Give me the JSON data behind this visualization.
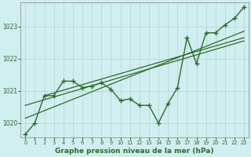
{
  "xlabel": "Graphe pression niveau de la mer (hPa)",
  "background_color": "#d0eef0",
  "grid_color": "#b0d4d4",
  "line_color": "#2d6a2d",
  "xlim": [
    -0.5,
    23.5
  ],
  "ylim": [
    1019.55,
    1023.75
  ],
  "yticks": [
    1020,
    1021,
    1022,
    1023
  ],
  "xticks": [
    0,
    1,
    2,
    3,
    4,
    5,
    6,
    7,
    8,
    9,
    10,
    11,
    12,
    13,
    14,
    15,
    16,
    17,
    18,
    19,
    20,
    21,
    22,
    23
  ],
  "main_x": [
    0,
    1,
    2,
    3,
    4,
    5,
    6,
    7,
    8,
    9,
    10,
    11,
    12,
    13,
    14,
    15,
    16,
    17,
    18,
    19,
    20,
    21,
    22,
    23
  ],
  "main_y": [
    1019.65,
    1020.0,
    1020.85,
    1020.85,
    1021.3,
    1021.3,
    1021.1,
    1021.15,
    1021.25,
    1021.05,
    1020.7,
    1020.75,
    1020.55,
    1020.55,
    1020.0,
    1020.6,
    1021.1,
    1022.65,
    1021.85,
    1022.8,
    1022.8,
    1023.05,
    1023.25,
    1023.6
  ],
  "trend1_x": [
    0,
    23
  ],
  "trend1_y": [
    1020.15,
    1022.85
  ],
  "trend2_x": [
    0,
    23
  ],
  "trend2_y": [
    1020.55,
    1022.55
  ],
  "trend3_x": [
    2,
    23
  ],
  "trend3_y": [
    1020.85,
    1022.65
  ]
}
